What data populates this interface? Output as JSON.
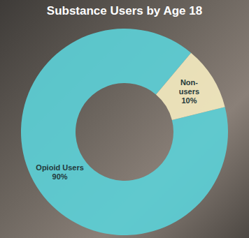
{
  "chart_data": {
    "type": "pie",
    "title": "Substance Users by Age 18",
    "categories": [
      "Opioid Users",
      "Non-users"
    ],
    "values": [
      90,
      10
    ],
    "value_labels": [
      "90%",
      "10%"
    ],
    "colors": [
      "#5ccfd6",
      "#f3e9bf"
    ],
    "data_labels": true
  }
}
